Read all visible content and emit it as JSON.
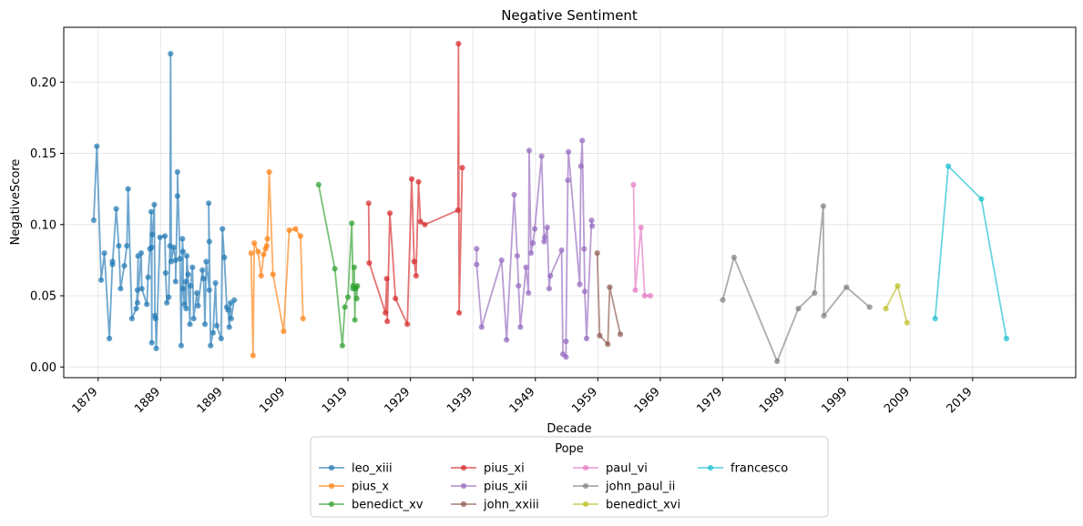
{
  "chart_data": {
    "type": "line",
    "title": "Negative Sentiment",
    "xlabel": "Decade",
    "ylabel": "NegativeScore",
    "xlim": [
      1873.5,
      2035.5
    ],
    "ylim": [
      -0.0075,
      0.2385
    ],
    "x_ticks": [
      1879,
      1889,
      1899,
      1909,
      1919,
      1929,
      1939,
      1949,
      1959,
      1969,
      1979,
      1989,
      1999,
      2009,
      2019
    ],
    "y_ticks": [
      0.0,
      0.05,
      0.1,
      0.15,
      0.2
    ],
    "y_tick_labels": [
      "0.00",
      "0.05",
      "0.10",
      "0.15",
      "0.20"
    ],
    "grid": true,
    "legend": {
      "title": "Pope",
      "placement": "below-center",
      "columns": 4
    },
    "series": [
      {
        "name": "leo_xiii",
        "color": "#1f77b4",
        "points": [
          [
            1878.3,
            0.103
          ],
          [
            1878.8,
            0.155
          ],
          [
            1879.5,
            0.061
          ],
          [
            1880.0,
            0.08
          ],
          [
            1880.8,
            0.02
          ],
          [
            1881.3,
            0.074
          ],
          [
            1881.3,
            0.072
          ],
          [
            1881.9,
            0.111
          ],
          [
            1882.3,
            0.085
          ],
          [
            1882.6,
            0.055
          ],
          [
            1883.2,
            0.071
          ],
          [
            1883.6,
            0.085
          ],
          [
            1883.8,
            0.125
          ],
          [
            1884.4,
            0.034
          ],
          [
            1885.1,
            0.041
          ],
          [
            1885.3,
            0.054
          ],
          [
            1885.4,
            0.078
          ],
          [
            1885.3,
            0.045
          ],
          [
            1885.9,
            0.08
          ],
          [
            1886.0,
            0.055
          ],
          [
            1886.8,
            0.044
          ],
          [
            1887.0,
            0.063
          ],
          [
            1887.3,
            0.083
          ],
          [
            1887.5,
            0.109
          ],
          [
            1887.6,
            0.017
          ],
          [
            1887.6,
            0.084
          ],
          [
            1887.7,
            0.093
          ],
          [
            1888.0,
            0.114
          ],
          [
            1888.1,
            0.036
          ],
          [
            1888.2,
            0.034
          ],
          [
            1888.3,
            0.013
          ],
          [
            1888.9,
            0.091
          ],
          [
            1889.7,
            0.092
          ],
          [
            1889.8,
            0.066
          ],
          [
            1890.0,
            0.045
          ],
          [
            1890.3,
            0.049
          ],
          [
            1890.5,
            0.085
          ],
          [
            1890.6,
            0.22
          ],
          [
            1890.7,
            0.074
          ],
          [
            1891.1,
            0.084
          ],
          [
            1891.4,
            0.075
          ],
          [
            1891.4,
            0.06
          ],
          [
            1891.7,
            0.12
          ],
          [
            1891.7,
            0.137
          ],
          [
            1892.1,
            0.076
          ],
          [
            1892.3,
            0.015
          ],
          [
            1892.5,
            0.09
          ],
          [
            1892.6,
            0.081
          ],
          [
            1892.6,
            0.055
          ],
          [
            1892.8,
            0.044
          ],
          [
            1893.0,
            0.06
          ],
          [
            1893.1,
            0.041
          ],
          [
            1893.2,
            0.078
          ],
          [
            1893.4,
            0.065
          ],
          [
            1893.7,
            0.03
          ],
          [
            1893.8,
            0.057
          ],
          [
            1894.1,
            0.07
          ],
          [
            1894.3,
            0.034
          ],
          [
            1894.8,
            0.052
          ],
          [
            1895.0,
            0.043
          ],
          [
            1895.7,
            0.068
          ],
          [
            1895.9,
            0.062
          ],
          [
            1896.1,
            0.03
          ],
          [
            1896.3,
            0.074
          ],
          [
            1896.8,
            0.054
          ],
          [
            1896.7,
            0.115
          ],
          [
            1896.8,
            0.088
          ],
          [
            1897.0,
            0.015
          ],
          [
            1897.4,
            0.024
          ],
          [
            1897.8,
            0.059
          ],
          [
            1898.0,
            0.029
          ],
          [
            1898.7,
            0.02
          ],
          [
            1898.9,
            0.097
          ],
          [
            1899.2,
            0.077
          ],
          [
            1899.6,
            0.042
          ],
          [
            1899.8,
            0.04
          ],
          [
            1900.0,
            0.028
          ],
          [
            1900.2,
            0.045
          ],
          [
            1900.3,
            0.034
          ],
          [
            1900.8,
            0.047
          ]
        ]
      },
      {
        "name": "pius_x",
        "color": "#ff7f0e",
        "points": [
          [
            1903.5,
            0.08
          ],
          [
            1903.8,
            0.008
          ],
          [
            1904.0,
            0.087
          ],
          [
            1904.6,
            0.081
          ],
          [
            1905.1,
            0.064
          ],
          [
            1905.5,
            0.079
          ],
          [
            1905.8,
            0.083
          ],
          [
            1906.0,
            0.085
          ],
          [
            1906.1,
            0.09
          ],
          [
            1906.4,
            0.137
          ],
          [
            1907.0,
            0.065
          ],
          [
            1908.7,
            0.025
          ],
          [
            1909.6,
            0.096
          ],
          [
            1910.6,
            0.097
          ],
          [
            1911.4,
            0.092
          ],
          [
            1911.8,
            0.034
          ]
        ]
      },
      {
        "name": "benedict_xv",
        "color": "#2ca02c",
        "points": [
          [
            1914.3,
            0.128
          ],
          [
            1916.9,
            0.069
          ],
          [
            1918.1,
            0.015
          ],
          [
            1918.5,
            0.042
          ],
          [
            1919.0,
            0.049
          ],
          [
            1919.6,
            0.101
          ],
          [
            1919.8,
            0.057
          ],
          [
            1919.8,
            0.055
          ],
          [
            1920.0,
            0.07
          ],
          [
            1920.1,
            0.033
          ],
          [
            1920.2,
            0.055
          ],
          [
            1920.3,
            0.056
          ],
          [
            1920.4,
            0.048
          ],
          [
            1920.5,
            0.057
          ]
        ]
      },
      {
        "name": "pius_xi",
        "color": "#d62728",
        "points": [
          [
            1922.3,
            0.115
          ],
          [
            1922.4,
            0.073
          ],
          [
            1925.0,
            0.038
          ],
          [
            1925.2,
            0.062
          ],
          [
            1925.3,
            0.032
          ],
          [
            1925.7,
            0.108
          ],
          [
            1926.6,
            0.048
          ],
          [
            1928.5,
            0.03
          ],
          [
            1929.2,
            0.132
          ],
          [
            1929.6,
            0.074
          ],
          [
            1929.9,
            0.064
          ],
          [
            1930.3,
            0.13
          ],
          [
            1930.6,
            0.102
          ],
          [
            1931.3,
            0.1
          ],
          [
            1936.6,
            0.11
          ],
          [
            1936.7,
            0.227
          ],
          [
            1936.8,
            0.038
          ],
          [
            1937.3,
            0.14
          ]
        ]
      },
      {
        "name": "pius_xii",
        "color": "#9467bd",
        "points": [
          [
            1939.6,
            0.083
          ],
          [
            1939.6,
            0.072
          ],
          [
            1940.4,
            0.028
          ],
          [
            1943.6,
            0.075
          ],
          [
            1944.4,
            0.019
          ],
          [
            1945.6,
            0.121
          ],
          [
            1946.1,
            0.078
          ],
          [
            1946.3,
            0.057
          ],
          [
            1946.6,
            0.028
          ],
          [
            1947.5,
            0.07
          ],
          [
            1947.9,
            0.052
          ],
          [
            1948.0,
            0.152
          ],
          [
            1948.3,
            0.08
          ],
          [
            1948.6,
            0.087
          ],
          [
            1948.9,
            0.097
          ],
          [
            1950.0,
            0.148
          ],
          [
            1950.4,
            0.088
          ],
          [
            1950.5,
            0.091
          ],
          [
            1950.9,
            0.098
          ],
          [
            1951.2,
            0.055
          ],
          [
            1951.4,
            0.064
          ],
          [
            1953.2,
            0.082
          ],
          [
            1953.4,
            0.009
          ],
          [
            1953.9,
            0.007
          ],
          [
            1953.9,
            0.018
          ],
          [
            1954.2,
            0.131
          ],
          [
            1954.3,
            0.151
          ],
          [
            1956.1,
            0.058
          ],
          [
            1956.3,
            0.141
          ],
          [
            1956.5,
            0.159
          ],
          [
            1956.8,
            0.083
          ],
          [
            1956.9,
            0.053
          ],
          [
            1957.2,
            0.02
          ],
          [
            1958.0,
            0.103
          ],
          [
            1958.1,
            0.099
          ]
        ]
      },
      {
        "name": "john_xxiii",
        "color": "#8c564b",
        "points": [
          [
            1958.9,
            0.08
          ],
          [
            1959.3,
            0.022
          ],
          [
            1960.6,
            0.016
          ],
          [
            1960.9,
            0.056
          ],
          [
            1962.6,
            0.023
          ]
        ]
      },
      {
        "name": "paul_vi",
        "color": "#e377c2",
        "points": [
          [
            1964.7,
            0.128
          ],
          [
            1965.0,
            0.054
          ],
          [
            1965.9,
            0.098
          ],
          [
            1966.5,
            0.05
          ],
          [
            1967.4,
            0.05
          ]
        ]
      },
      {
        "name": "john_paul_ii",
        "color": "#7f7f7f",
        "points": [
          [
            1979.0,
            0.047
          ],
          [
            1980.8,
            0.077
          ],
          [
            1987.7,
            0.004
          ],
          [
            1991.1,
            0.041
          ],
          [
            1993.7,
            0.052
          ],
          [
            1995.1,
            0.113
          ],
          [
            1995.2,
            0.036
          ],
          [
            1998.8,
            0.056
          ],
          [
            2002.5,
            0.042
          ]
        ]
      },
      {
        "name": "benedict_xvi",
        "color": "#bcbd22",
        "points": [
          [
            2005.1,
            0.041
          ],
          [
            2007.0,
            0.057
          ],
          [
            2008.5,
            0.031
          ]
        ]
      },
      {
        "name": "francesco",
        "color": "#17becf",
        "points": [
          [
            2013.0,
            0.034
          ],
          [
            2015.1,
            0.141
          ],
          [
            2020.4,
            0.118
          ],
          [
            2024.4,
            0.02
          ]
        ]
      }
    ]
  }
}
